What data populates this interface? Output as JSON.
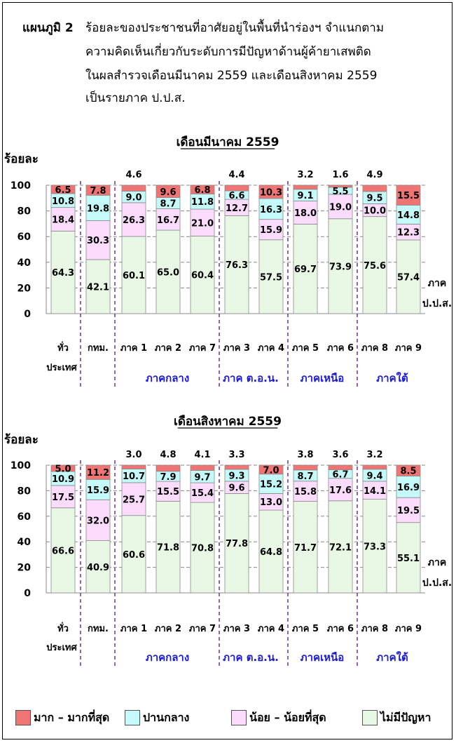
{
  "caption": {
    "label": "แผนภูมิ 2",
    "lines": [
      "ร้อยละของประชาชนที่อาศัยอยู่ในพื้นที่นำร่องฯ  จำแนกตาม",
      "ความคิดเห็นเกี่ยวกับระดับการมีปัญหาด้านผู้ค้ายาเสพติด",
      "ในผลสำรวจเดือนมีนาคม 2559  และเดือนสิงหาคม 2559",
      "เป็นรายภาค ป.ป.ส."
    ]
  },
  "colors": {
    "most": "#f07474",
    "moderate": "#c4fafa",
    "little": "#fcdcfc",
    "none": "#e8f8e4",
    "region_label": "#1a1ad8",
    "divider": "#7040a0"
  },
  "legend": [
    {
      "key": "most",
      "label": "มาก – มากที่สุด"
    },
    {
      "key": "moderate",
      "label": "ปานกลาง"
    },
    {
      "key": "little",
      "label": "น้อย – น้อยที่สุด"
    },
    {
      "key": "none",
      "label": "ไม่มีปัญหา"
    }
  ],
  "chart_data": [
    {
      "type": "bar",
      "stacked": true,
      "title": "เดือนมีนาคม 2559",
      "ylabel": "ร้อยละ",
      "xlabel": "ภาค ป.ป.ส.",
      "ylim": [
        0,
        100
      ],
      "yticks": [
        0,
        20,
        40,
        60,
        80,
        100
      ],
      "grid": true,
      "categories": [
        "ทั่วประเทศ",
        "กทม.",
        "ภาค 1",
        "ภาค 2",
        "ภาค 7",
        "ภาค 3",
        "ภาค 4",
        "ภาค 5",
        "ภาค 6",
        "ภาค 8",
        "ภาค 9"
      ],
      "region_groups": [
        "ภาคกลาง",
        "ภาค ต.อ.น.",
        "ภาคเหนือ",
        "ภาคใต้"
      ],
      "series": [
        {
          "name": "ไม่มีปัญหา",
          "key": "none",
          "values": [
            64.3,
            42.1,
            60.1,
            65.0,
            60.4,
            76.3,
            57.5,
            69.7,
            73.9,
            75.6,
            57.4
          ]
        },
        {
          "name": "น้อย – น้อยที่สุด",
          "key": "little",
          "values": [
            18.4,
            30.3,
            26.3,
            16.7,
            21.0,
            12.7,
            15.9,
            18.0,
            19.0,
            10.0,
            12.3
          ]
        },
        {
          "name": "ปานกลาง",
          "key": "moderate",
          "values": [
            10.8,
            19.8,
            9.0,
            8.7,
            11.8,
            6.6,
            16.3,
            9.1,
            5.5,
            9.5,
            14.8
          ]
        },
        {
          "name": "มาก – มากที่สุด",
          "key": "most",
          "values": [
            6.5,
            7.8,
            4.6,
            9.6,
            6.8,
            4.4,
            10.3,
            3.2,
            1.6,
            4.9,
            15.5
          ]
        }
      ]
    },
    {
      "type": "bar",
      "stacked": true,
      "title": "เดือนสิงหาคม 2559",
      "ylabel": "ร้อยละ",
      "xlabel": "ภาค ป.ป.ส.",
      "ylim": [
        0,
        100
      ],
      "yticks": [
        0,
        20,
        40,
        60,
        80,
        100
      ],
      "grid": true,
      "categories": [
        "ทั่วประเทศ",
        "กทม.",
        "ภาค 1",
        "ภาค 2",
        "ภาค 7",
        "ภาค 3",
        "ภาค 4",
        "ภาค 5",
        "ภาค 6",
        "ภาค 8",
        "ภาค 9"
      ],
      "region_groups": [
        "ภาคกลาง",
        "ภาค ต.อ.น.",
        "ภาคเหนือ",
        "ภาคใต้"
      ],
      "series": [
        {
          "name": "ไม่มีปัญหา",
          "key": "none",
          "values": [
            66.6,
            40.9,
            60.6,
            71.8,
            70.8,
            77.8,
            64.8,
            71.7,
            72.1,
            73.3,
            55.1
          ]
        },
        {
          "name": "น้อย – น้อยที่สุด",
          "key": "little",
          "values": [
            17.5,
            32.0,
            25.7,
            15.5,
            15.4,
            9.6,
            13.0,
            15.8,
            17.6,
            14.1,
            19.5
          ]
        },
        {
          "name": "ปานกลาง",
          "key": "moderate",
          "values": [
            10.9,
            15.9,
            10.7,
            7.9,
            9.7,
            9.3,
            15.2,
            8.7,
            6.7,
            9.4,
            16.9
          ]
        },
        {
          "name": "มาก – มากที่สุด",
          "key": "most",
          "values": [
            5.0,
            11.2,
            3.0,
            4.8,
            4.1,
            3.3,
            7.0,
            3.8,
            3.6,
            3.2,
            8.5
          ]
        }
      ]
    }
  ]
}
